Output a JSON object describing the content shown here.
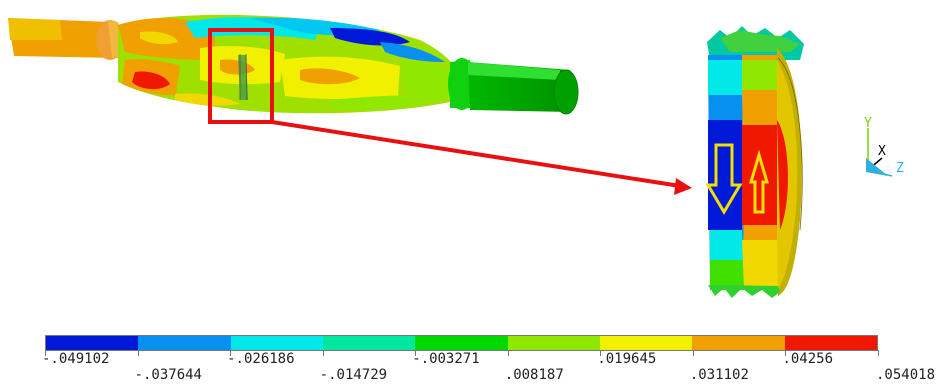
{
  "triad": {
    "y_label": "Y",
    "x_label": "X",
    "z_label": "Z"
  },
  "legend": {
    "colors": [
      "#0018d8",
      "#0890f0",
      "#00e8e8",
      "#00e8a0",
      "#00d800",
      "#90e800",
      "#f0f000",
      "#f0a000",
      "#f01800"
    ],
    "labels": [
      "-.049102",
      "-.037644",
      "-.026186",
      "-.014729",
      "-.003271",
      ".008187",
      ".019645",
      ".031102",
      ".04256",
      ".054018"
    ]
  }
}
